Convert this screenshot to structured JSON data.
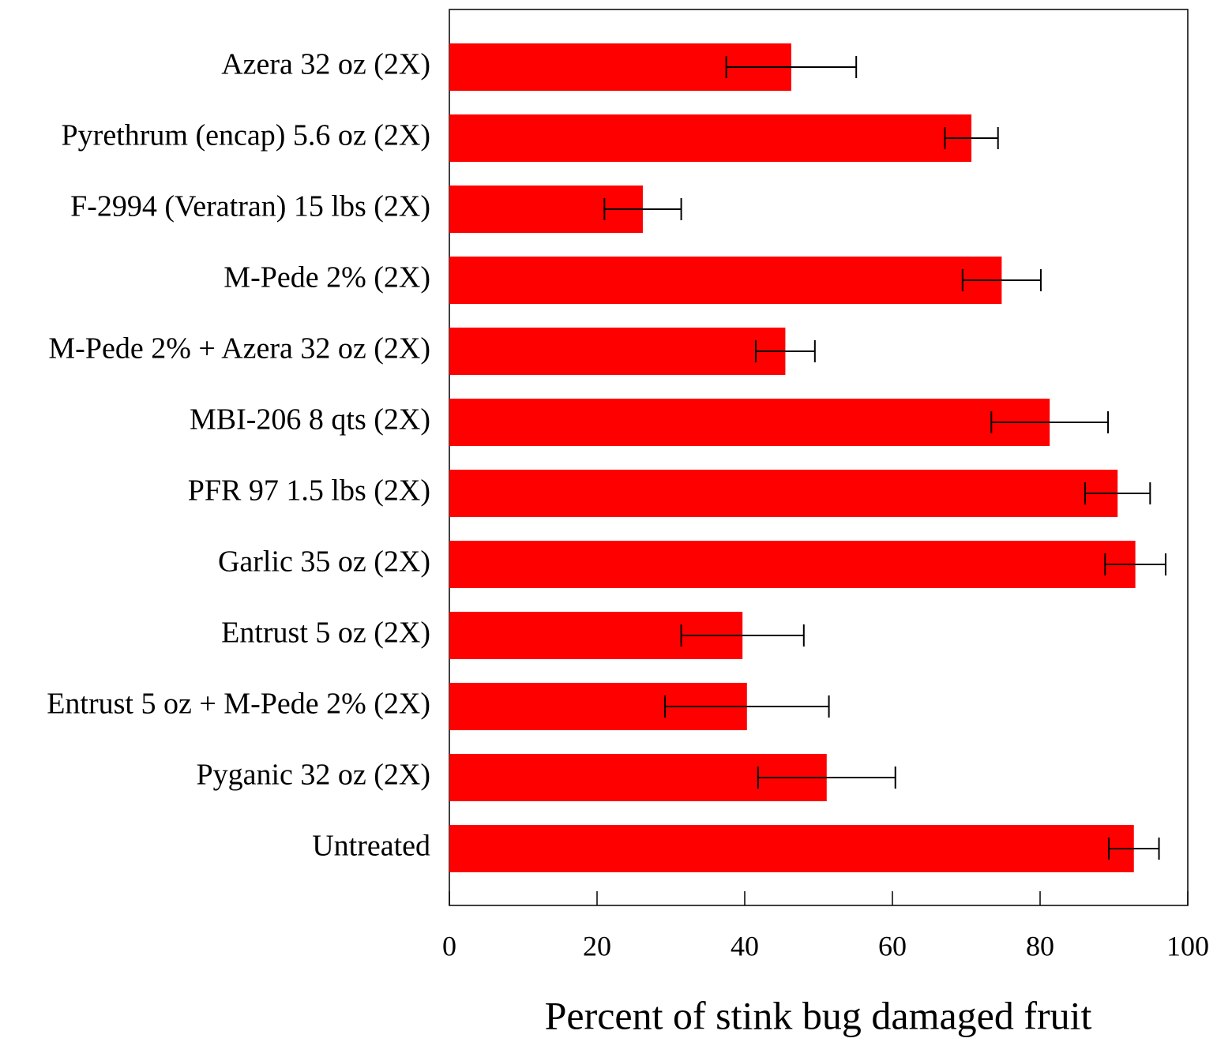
{
  "chart_data": {
    "type": "bar",
    "orientation": "horizontal",
    "xlabel": "Percent of stink bug damaged fruit",
    "categories": [
      "Azera 32 oz (2X)",
      "Pyrethrum (encap) 5.6 oz (2X)",
      "F-2994 (Veratran) 15 lbs (2X)",
      "M-Pede 2% (2X)",
      "M-Pede 2% + Azera 32 oz (2X)",
      "MBI-206 8 qts (2X)",
      "PFR 97 1.5 lbs (2X)",
      "Garlic 35 oz (2X)",
      "Entrust 5 oz (2X)",
      "Entrust 5 oz + M-Pede 2% (2X)",
      "Pyganic 32 oz (2X)",
      "Untreated"
    ],
    "values": [
      46.3,
      70.7,
      26.2,
      74.8,
      45.5,
      81.3,
      90.5,
      92.9,
      39.7,
      40.3,
      51.1,
      92.7
    ],
    "errors": [
      8.8,
      3.6,
      5.2,
      5.3,
      4.0,
      7.9,
      4.4,
      4.1,
      8.3,
      11.1,
      9.3,
      3.4
    ],
    "color": "#ff0000",
    "xlim": [
      0,
      100
    ],
    "xticks": [
      0,
      20,
      40,
      60,
      80,
      100
    ],
    "grid": false
  }
}
